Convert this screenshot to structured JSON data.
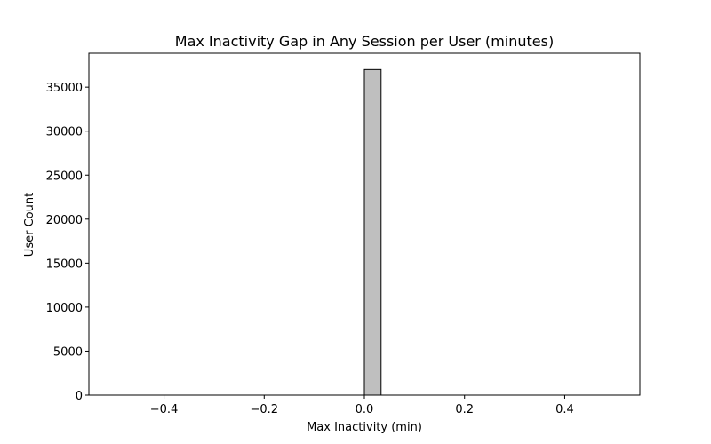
{
  "chart_data": {
    "type": "bar",
    "title": "Max Inactivity Gap in Any Session per User (minutes)",
    "xlabel": "Max Inactivity (min)",
    "ylabel": "User Count",
    "xlim": [
      -0.55,
      0.55
    ],
    "ylim": [
      0,
      38850
    ],
    "x_ticks": [
      -0.4,
      -0.2,
      0.0,
      0.2,
      0.4
    ],
    "x_tick_labels": [
      "−0.4",
      "−0.2",
      "0.0",
      "0.2",
      "0.4"
    ],
    "y_ticks": [
      0,
      5000,
      10000,
      15000,
      20000,
      25000,
      30000,
      35000
    ],
    "y_tick_labels": [
      "0",
      "5000",
      "10000",
      "15000",
      "20000",
      "25000",
      "30000",
      "35000"
    ],
    "bins": {
      "start": -0.5,
      "end": 0.5,
      "count": 30
    },
    "series": [
      {
        "bin_start": 0.0,
        "bin_end": 0.0333,
        "value": 37000
      }
    ],
    "grid": false,
    "legend": "none",
    "colors": {
      "bar_fill": "#bfbfbf",
      "bar_edge": "#000000",
      "axes": "#000000"
    }
  }
}
